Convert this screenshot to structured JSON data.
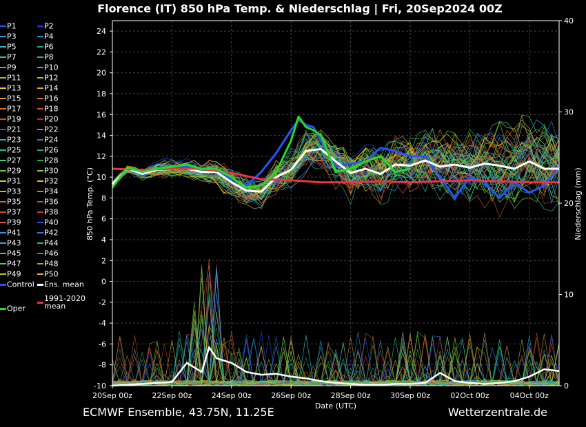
{
  "header": {
    "title": "Florence  (IT)  850 hPa Temp. & Niederschlag | Fri, 20Sep2024 00Z"
  },
  "footer": {
    "model": "ECMWF Ensemble, 43.75N, 11.25E",
    "site": "Wetterzentrale.de"
  },
  "legend": {
    "members": [
      "P1",
      "P2",
      "P3",
      "P4",
      "P5",
      "P6",
      "P7",
      "P8",
      "P9",
      "P10",
      "P11",
      "P12",
      "P13",
      "P14",
      "P15",
      "P16",
      "P17",
      "P18",
      "P19",
      "P20",
      "P21",
      "P22",
      "P23",
      "P24",
      "P25",
      "P26",
      "P27",
      "P28",
      "P29",
      "P30",
      "P31",
      "P32",
      "P33",
      "P34",
      "P35",
      "P36",
      "P37",
      "P38",
      "P39",
      "P40",
      "P41",
      "P42",
      "P43",
      "P44",
      "P45",
      "P46",
      "P47",
      "P48",
      "P49",
      "P50"
    ],
    "member_colors": [
      "#2255ff",
      "#2233ee",
      "#3399dd",
      "#2288ee",
      "#33bbbb",
      "#22aa88",
      "#22cc99",
      "#33bb66",
      "#44cc44",
      "#33dd33",
      "#88cc22",
      "#aacc22",
      "#ddcc22",
      "#ddaa22",
      "#dd9933",
      "#cc7722",
      "#dd6633",
      "#cc5522",
      "#dd4422",
      "#cc2222",
      "#2266dd",
      "#3399ee",
      "#33aacc",
      "#2288bb",
      "#22bbaa",
      "#22aa77",
      "#33cc88",
      "#22aa44",
      "#66cc33",
      "#99cc22",
      "#cccc22",
      "#ddbb33",
      "#ddaa44",
      "#cc8833",
      "#cc6633",
      "#bb5522",
      "#dd4433",
      "#cc3333",
      "#dd5555",
      "#3355dd",
      "#2299ee",
      "#3377ee",
      "#33aadd",
      "#22bb99",
      "#33cc99",
      "#22aa55",
      "#55cc44",
      "#66cc33",
      "#bbcc22",
      "#ddbb22"
    ],
    "control": "Control",
    "ens_mean": "Ens. mean",
    "clim_mean": "1991-2020\nmean",
    "oper": "Oper",
    "control_color": "#2255ff",
    "ens_mean_color": "#ffffff",
    "clim_color": "#ee3344",
    "oper_color": "#22dd22"
  },
  "chart_data": {
    "type": "line",
    "title": "Florence  (IT)  850 hPa Temp. & Niederschlag | Fri, 20Sep2024 00Z",
    "xlabel": "Date (UTC)",
    "ylabel_left": "850 hPa Temp. (°C)",
    "ylabel_right": "Niederschlag (mm)",
    "x_range_hours": [
      0,
      360
    ],
    "ylim_left": [
      -10,
      25
    ],
    "ylim_right": [
      0,
      40
    ],
    "grid": true,
    "legend_position": "left",
    "x_tick_hours": [
      0,
      48,
      96,
      144,
      192,
      240,
      288,
      336
    ],
    "x_tick_labels": [
      "20Sep 00z",
      "22Sep 00z",
      "24Sep 00z",
      "26Sep 00z",
      "28Sep 00z",
      "30Sep 00z",
      "02Oct 00z",
      "04Oct 00z"
    ],
    "y_ticks_left": [
      -10,
      -8,
      -6,
      -4,
      -2,
      0,
      2,
      4,
      6,
      8,
      10,
      12,
      14,
      16,
      18,
      20,
      22,
      24
    ],
    "y_ticks_right": [
      0,
      10,
      20,
      30,
      40
    ],
    "series": [
      {
        "name": "Control",
        "x": [
          0,
          12,
          24,
          36,
          48,
          60,
          72,
          84,
          96,
          108,
          120,
          132,
          144,
          150,
          156,
          162,
          168,
          180,
          192,
          204,
          216,
          228,
          240,
          252,
          264,
          276,
          288,
          300,
          312,
          324,
          336,
          348,
          360
        ],
        "values": [
          9.2,
          10.8,
          10.2,
          10.8,
          10.8,
          11.0,
          10.5,
          10.5,
          9.8,
          9.2,
          10.5,
          12.3,
          14.5,
          15.5,
          15.0,
          14.8,
          13.5,
          11.0,
          11.3,
          11.5,
          12.8,
          12.5,
          12.0,
          12.0,
          10.0,
          8.0,
          10.0,
          9.5,
          8.0,
          9.5,
          8.5,
          9.2,
          11.0
        ]
      },
      {
        "name": "Ens. mean",
        "x": [
          0,
          12,
          24,
          36,
          48,
          60,
          72,
          84,
          96,
          108,
          120,
          132,
          144,
          156,
          168,
          180,
          192,
          204,
          216,
          228,
          240,
          252,
          264,
          276,
          288,
          300,
          312,
          324,
          336,
          348,
          360
        ],
        "values": [
          9.3,
          10.8,
          10.3,
          10.7,
          10.8,
          10.8,
          10.5,
          10.5,
          9.5,
          8.7,
          8.6,
          10.0,
          10.7,
          12.5,
          12.7,
          11.5,
          10.4,
          10.8,
          10.3,
          11.2,
          11.1,
          11.6,
          11.0,
          11.2,
          10.9,
          11.3,
          11.1,
          10.8,
          11.5,
          10.8,
          10.8
        ]
      },
      {
        "name": "1991-2020 mean",
        "x": [
          0,
          24,
          48,
          72,
          96,
          120,
          144,
          168,
          192,
          216,
          240,
          264,
          288,
          312,
          336,
          360
        ],
        "values": [
          10.8,
          10.7,
          10.8,
          10.8,
          10.4,
          9.8,
          9.7,
          9.5,
          9.5,
          9.6,
          9.5,
          9.6,
          9.7,
          9.6,
          9.5,
          9.5
        ]
      },
      {
        "name": "Oper",
        "x": [
          0,
          12,
          24,
          36,
          48,
          60,
          72,
          84,
          96,
          108,
          120,
          132,
          144,
          150,
          156,
          162,
          168,
          180,
          192,
          204,
          216,
          228,
          240
        ],
        "values": [
          9.0,
          10.9,
          10.5,
          10.8,
          11.0,
          11.2,
          10.8,
          10.8,
          10.0,
          9.0,
          9.2,
          10.5,
          13.5,
          15.8,
          14.8,
          14.5,
          14.0,
          10.5,
          10.8,
          11.5,
          12.0,
          10.5,
          10.8
        ]
      }
    ],
    "precip_mean_mm": {
      "x": [
        0,
        24,
        48,
        60,
        72,
        78,
        84,
        96,
        108,
        120,
        132,
        144,
        156,
        168,
        180,
        192,
        204,
        216,
        228,
        240,
        252,
        264,
        276,
        288,
        300,
        312,
        324,
        336,
        348,
        360
      ],
      "values": [
        0,
        0.2,
        0.4,
        2.5,
        1.5,
        4.2,
        3.0,
        2.5,
        1.5,
        1.2,
        1.3,
        1.0,
        0.8,
        0.5,
        0.3,
        0.2,
        0.1,
        0.1,
        0.2,
        0.2,
        0.3,
        1.4,
        0.5,
        0.3,
        0.2,
        0.3,
        0.5,
        1.0,
        1.8,
        1.6
      ]
    }
  }
}
